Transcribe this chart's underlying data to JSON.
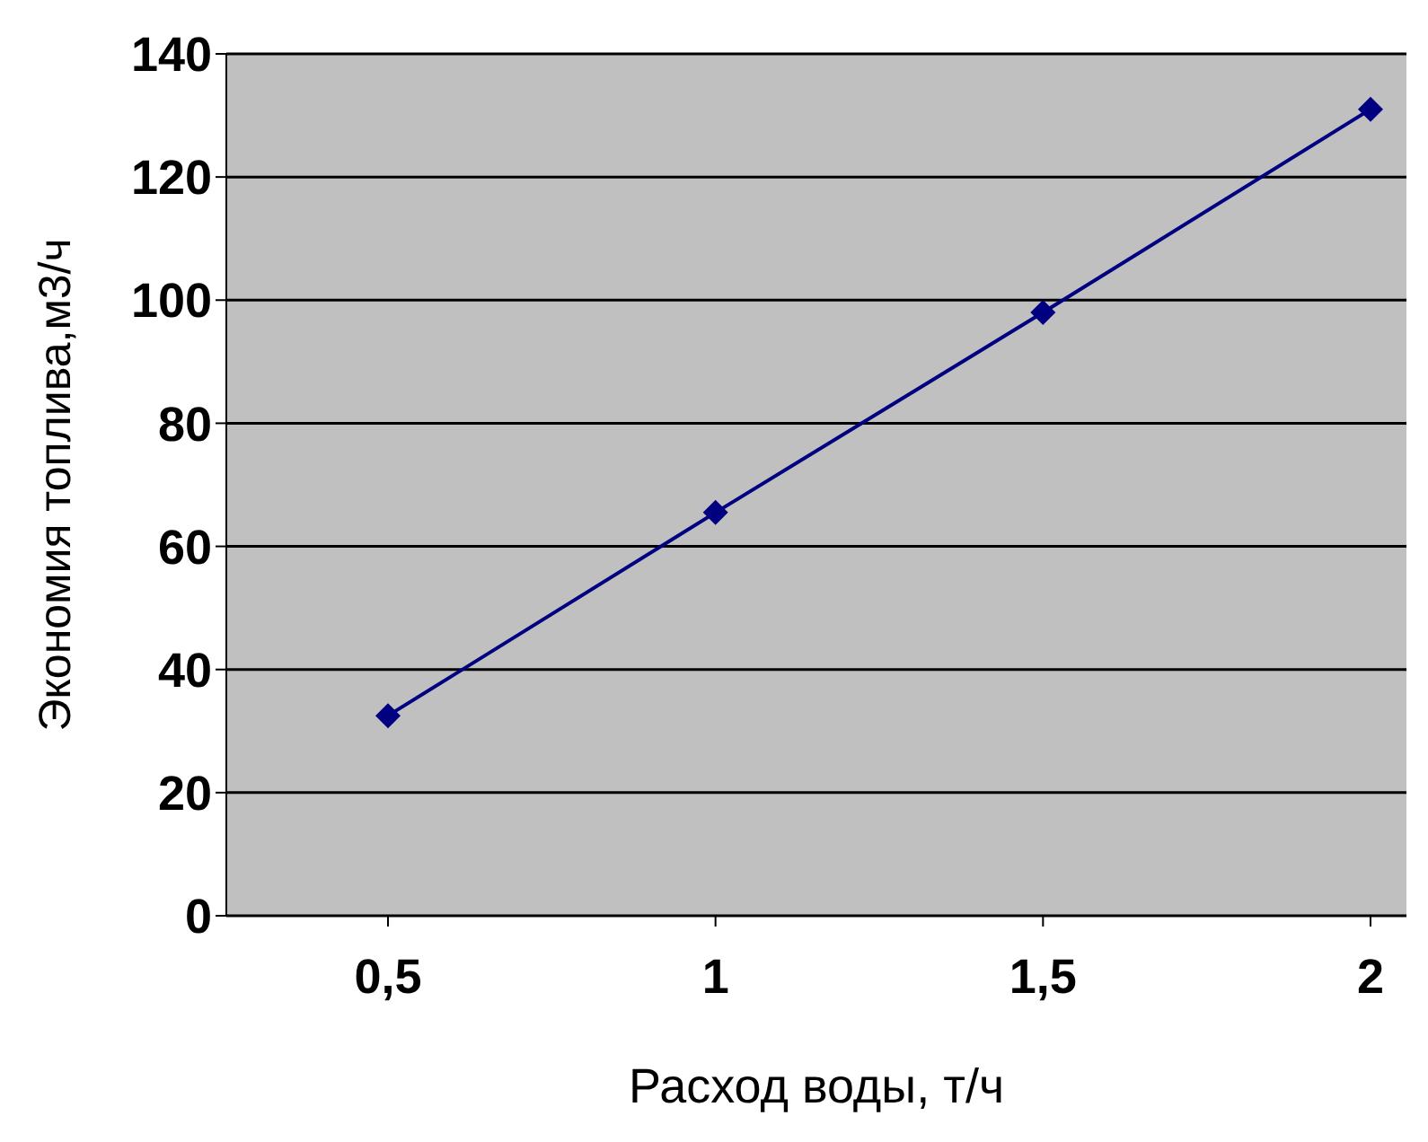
{
  "chart_data": {
    "type": "line",
    "xlabel": "Расход воды, т/ч",
    "ylabel": "Экономия топлива,м3/ч",
    "categories": [
      "0,5",
      "1",
      "1,5",
      "2"
    ],
    "series": [
      {
        "color": "#000080",
        "values": [
          32.5,
          65.5,
          98,
          131
        ]
      }
    ],
    "ylim": [
      0,
      140
    ],
    "yticks": [
      0,
      20,
      40,
      60,
      80,
      100,
      120,
      140
    ],
    "grid": "y",
    "legend": false,
    "marker": "diamond",
    "line_style": "solid"
  }
}
